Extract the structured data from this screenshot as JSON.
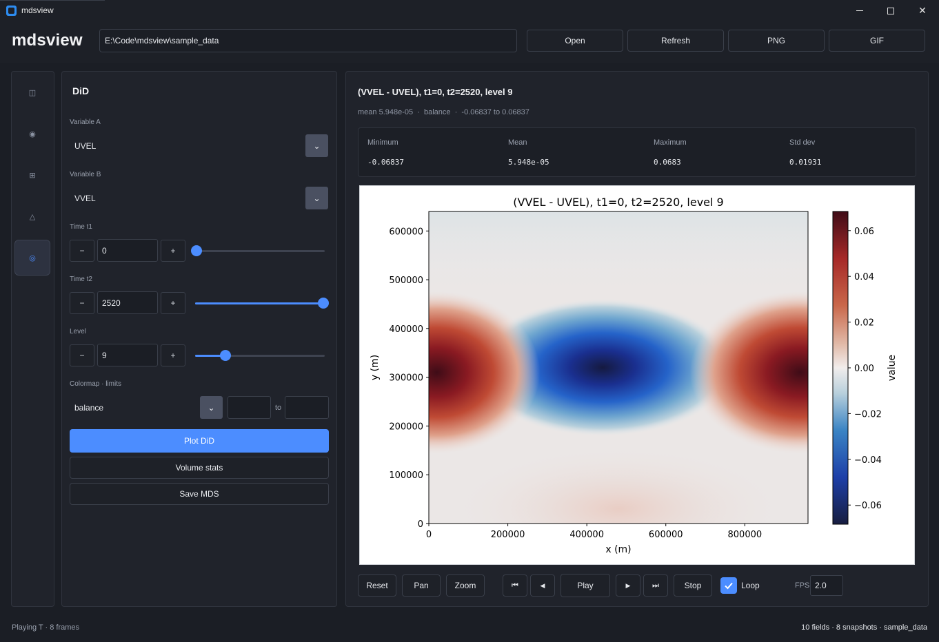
{
  "window": {
    "title": "mdsview",
    "minimize": "—",
    "maximize": "☐",
    "close": "✕"
  },
  "toolbar": {
    "brand": "mdsview",
    "path": "E:\\Code\\mdsview\\sample_data",
    "open": "Open",
    "refresh": "Refresh",
    "png": "PNG",
    "gif": "GIF"
  },
  "sidebar": {
    "items": [
      {
        "icon": "panel-icon",
        "glyph": "◫"
      },
      {
        "icon": "target-icon",
        "glyph": "◉"
      },
      {
        "icon": "grid-icon",
        "glyph": "⊞"
      },
      {
        "icon": "triangle-icon",
        "glyph": "△"
      },
      {
        "icon": "difference-icon",
        "glyph": "◎",
        "active": true
      }
    ]
  },
  "did": {
    "title": "DiD",
    "var_a_label": "Variable A",
    "var_a": "UVEL",
    "var_b_label": "Variable B",
    "var_b": "VVEL",
    "t1_label": "Time t1",
    "t1": "0",
    "t1_fraction": 0.0,
    "t2_label": "Time t2",
    "t2": "2520",
    "t2_fraction": 1.0,
    "level_label": "Level",
    "level": "9",
    "level_fraction": 0.23,
    "minus": "−",
    "plus": "+",
    "cmap_label": "Colormap · limits",
    "cmap": "balance",
    "to": "to",
    "lim_min": "",
    "lim_max": "",
    "plot_btn": "Plot DiD",
    "volume_btn": "Volume stats",
    "save_btn": "Save MDS",
    "dropdown_glyph": "⌄"
  },
  "view": {
    "heading": "(VVEL - UVEL), t1=0, t2=2520, level 9",
    "subheading": "mean 5.948e-05  ·  balance  ·  -0.06837 to 0.06837",
    "stats": [
      {
        "label": "Minimum",
        "value": "-0.06837"
      },
      {
        "label": "Mean",
        "value": "5.948e-05"
      },
      {
        "label": "Maximum",
        "value": "0.0683"
      },
      {
        "label": "Std dev",
        "value": "0.01931"
      }
    ]
  },
  "chart_data": {
    "type": "heatmap",
    "title": "(VVEL - UVEL), t1=0, t2=2520, level 9",
    "xlabel": "x (m)",
    "ylabel": "y (m)",
    "colorbar_label": "value",
    "colormap": "balance",
    "xlim": [
      0,
      960000
    ],
    "ylim": [
      0,
      640000
    ],
    "xticks": [
      "0",
      "200000",
      "400000",
      "600000",
      "800000"
    ],
    "xtick_values": [
      0,
      200000,
      400000,
      600000,
      800000
    ],
    "yticks": [
      "0",
      "100000",
      "200000",
      "300000",
      "400000",
      "500000",
      "600000"
    ],
    "ytick_values": [
      0,
      100000,
      200000,
      300000,
      400000,
      500000,
      600000
    ],
    "clim": [
      -0.06837,
      0.06837
    ],
    "cbar_ticks": [
      "−0.06",
      "−0.04",
      "−0.02",
      "0.00",
      "0.02",
      "0.04",
      "0.06"
    ],
    "cbar_tick_values": [
      -0.06,
      -0.04,
      -0.02,
      0.0,
      0.02,
      0.04,
      0.06
    ],
    "features": [
      {
        "kind": "negative blob",
        "x": 440000,
        "y": 320000,
        "value": -0.068
      },
      {
        "kind": "positive blob",
        "x": 940000,
        "y": 310000,
        "value": 0.068
      },
      {
        "kind": "positive blob",
        "x": 20000,
        "y": 310000,
        "value": 0.06
      }
    ]
  },
  "playback": {
    "reset": "Reset",
    "pan": "Pan",
    "zoom": "Zoom",
    "first": "⏮",
    "prev": "◀",
    "play": "Play",
    "next": "▶",
    "last": "⏭",
    "stop": "Stop",
    "loop": "Loop",
    "loop_checked": true,
    "fps_label": "FPS",
    "fps": "2.0"
  },
  "status": {
    "left": "Playing T · 8 frames",
    "right": "10 fields · 8 snapshots · sample_data"
  }
}
